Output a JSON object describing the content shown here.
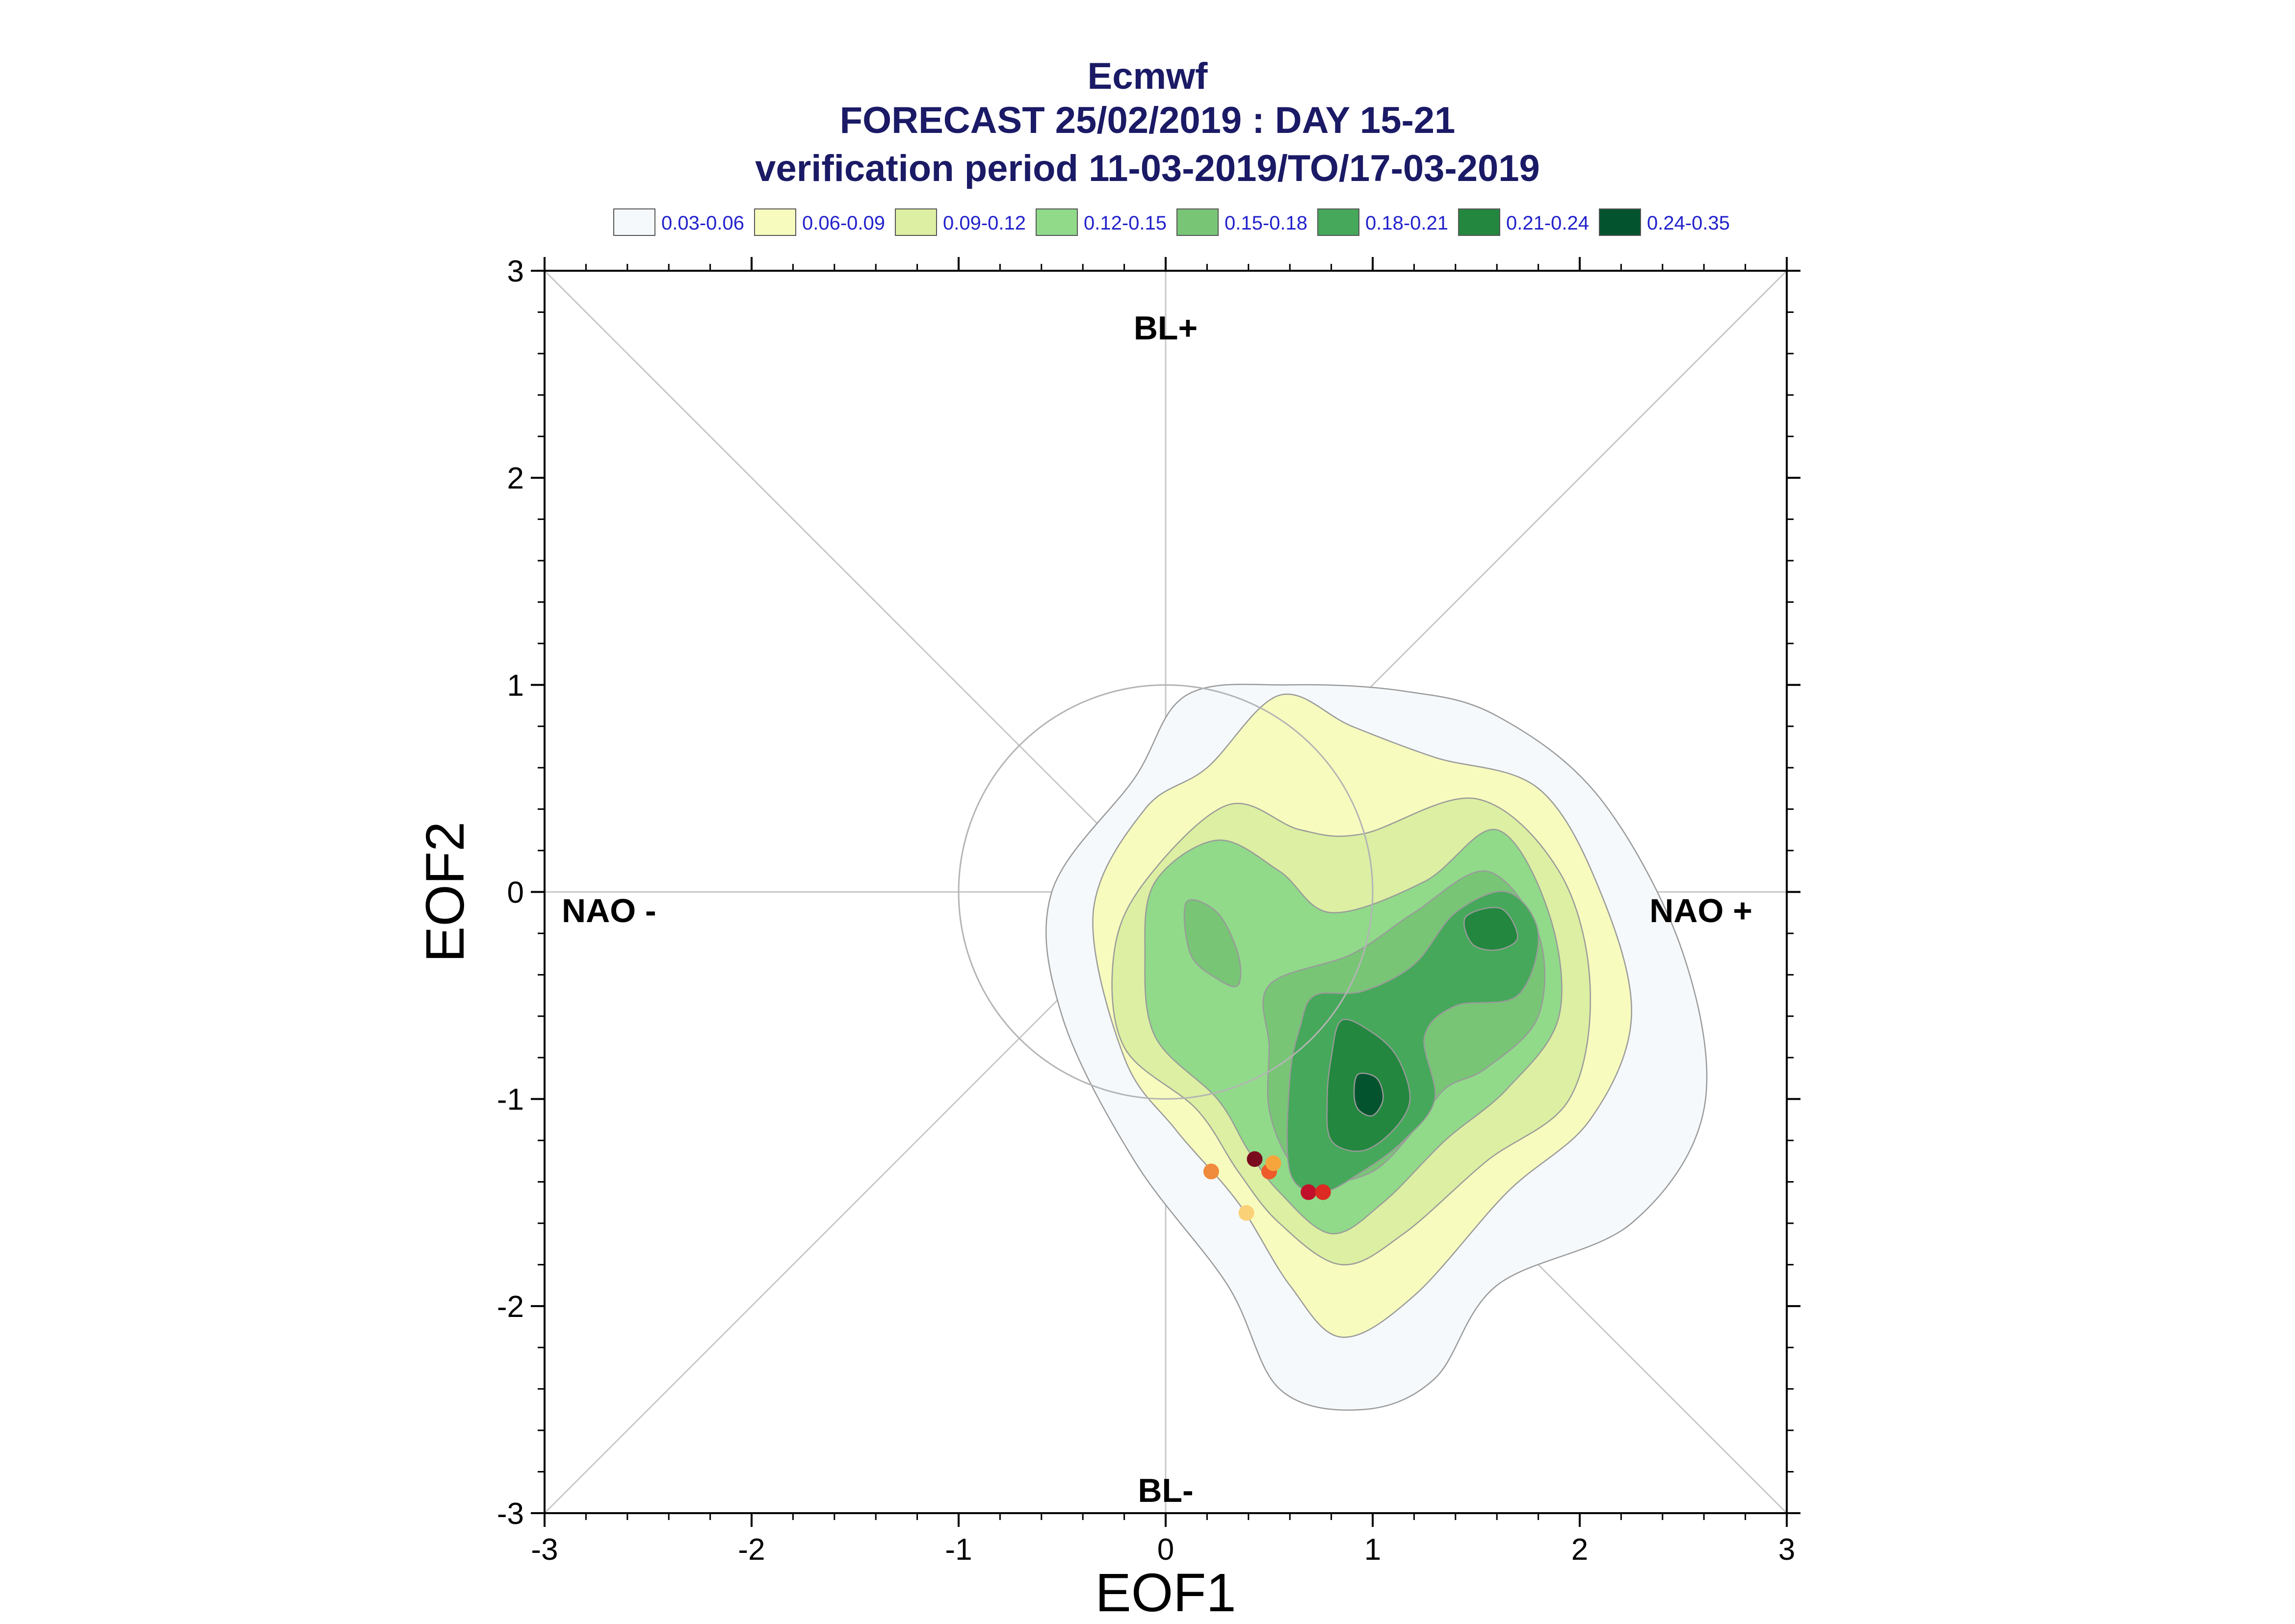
{
  "title": {
    "line1": "Ecmwf",
    "line2": "FORECAST 25/02/2019 : DAY 15-21",
    "line3": "verification period 11-03-2019/TO/17-03-2019"
  },
  "legend": [
    {
      "label": "0.03-0.06",
      "color": "#f5f9fc"
    },
    {
      "label": "0.06-0.09",
      "color": "#f7fbbe"
    },
    {
      "label": "0.09-0.12",
      "color": "#dcefa3"
    },
    {
      "label": "0.12-0.15",
      "color": "#90da8a"
    },
    {
      "label": "0.15-0.18",
      "color": "#78c576"
    },
    {
      "label": "0.18-0.21",
      "color": "#46a85a"
    },
    {
      "label": "0.21-0.24",
      "color": "#23873f"
    },
    {
      "label": "0.24-0.35",
      "color": "#04532f"
    }
  ],
  "regime_labels": {
    "top": "BL+",
    "bottom": "BL-",
    "left": "NAO -",
    "right": "NAO +"
  },
  "chart_data": {
    "type": "scatter",
    "xlabel": "EOF1",
    "ylabel": "EOF2",
    "xlim": [
      -3,
      3
    ],
    "ylim": [
      -3,
      3
    ],
    "x_ticks": [
      "-3",
      "-2",
      "-1",
      "0",
      "1",
      "2",
      "3"
    ],
    "y_ticks": [
      "-3",
      "-2",
      "-1",
      "0",
      "1",
      "2",
      "3"
    ],
    "unit_circle_radius": 1,
    "diagonals": true,
    "density_levels": [
      {
        "range": "0.03-0.06",
        "color": "#f5f9fc",
        "outline": [
          [
            -0.15,
            0.55
          ],
          [
            0.1,
            0.95
          ],
          [
            0.6,
            1.0
          ],
          [
            1.15,
            0.97
          ],
          [
            1.6,
            0.85
          ],
          [
            2.1,
            0.45
          ],
          [
            2.5,
            -0.3
          ],
          [
            2.6,
            -1.05
          ],
          [
            2.25,
            -1.6
          ],
          [
            1.6,
            -1.9
          ],
          [
            1.3,
            -2.35
          ],
          [
            0.95,
            -2.5
          ],
          [
            0.55,
            -2.4
          ],
          [
            0.3,
            -1.9
          ],
          [
            -0.15,
            -1.3
          ],
          [
            -0.5,
            -0.6
          ],
          [
            -0.55,
            0.0
          ]
        ]
      },
      {
        "range": "0.06-0.09",
        "color": "#f7fbbe",
        "outline": [
          [
            0.2,
            0.6
          ],
          [
            0.55,
            0.95
          ],
          [
            0.9,
            0.8
          ],
          [
            1.3,
            0.65
          ],
          [
            1.8,
            0.5
          ],
          [
            2.1,
            0.0
          ],
          [
            2.25,
            -0.6
          ],
          [
            2.05,
            -1.1
          ],
          [
            1.65,
            -1.45
          ],
          [
            1.2,
            -1.95
          ],
          [
            0.85,
            -2.15
          ],
          [
            0.6,
            -1.9
          ],
          [
            0.35,
            -1.5
          ],
          [
            0.05,
            -1.15
          ],
          [
            -0.2,
            -0.8
          ],
          [
            -0.35,
            -0.1
          ],
          [
            -0.1,
            0.4
          ]
        ]
      },
      {
        "range": "0.09-0.12",
        "color": "#dcefa3",
        "outline": [
          [
            -0.1,
            0.05
          ],
          [
            0.3,
            0.42
          ],
          [
            0.65,
            0.3
          ],
          [
            0.95,
            0.28
          ],
          [
            1.5,
            0.45
          ],
          [
            1.9,
            0.1
          ],
          [
            2.05,
            -0.45
          ],
          [
            1.95,
            -1.0
          ],
          [
            1.55,
            -1.3
          ],
          [
            1.15,
            -1.65
          ],
          [
            0.85,
            -1.8
          ],
          [
            0.55,
            -1.6
          ],
          [
            0.35,
            -1.35
          ],
          [
            0.15,
            -1.05
          ],
          [
            -0.2,
            -0.75
          ],
          [
            -0.25,
            -0.3
          ]
        ]
      },
      {
        "range": "0.12-0.15",
        "color": "#90da8a",
        "outline": [
          [
            -0.05,
            0.05
          ],
          [
            0.25,
            0.25
          ],
          [
            0.55,
            0.1
          ],
          [
            0.8,
            -0.1
          ],
          [
            1.25,
            0.05
          ],
          [
            1.6,
            0.3
          ],
          [
            1.85,
            -0.1
          ],
          [
            1.9,
            -0.6
          ],
          [
            1.65,
            -0.95
          ],
          [
            1.35,
            -1.2
          ],
          [
            1.05,
            -1.5
          ],
          [
            0.8,
            -1.65
          ],
          [
            0.55,
            -1.45
          ],
          [
            0.4,
            -1.25
          ],
          [
            0.25,
            -1.0
          ],
          [
            -0.05,
            -0.7
          ],
          [
            -0.1,
            -0.3
          ]
        ]
      },
      {
        "range": "0.15-0.18",
        "color": "#78c576",
        "outline": [
          [
            0.5,
            -0.45
          ],
          [
            0.9,
            -0.3
          ],
          [
            1.2,
            -0.1
          ],
          [
            1.55,
            0.1
          ],
          [
            1.8,
            -0.2
          ],
          [
            1.8,
            -0.6
          ],
          [
            1.55,
            -0.85
          ],
          [
            1.35,
            -0.95
          ],
          [
            1.2,
            -1.15
          ],
          [
            1.0,
            -1.35
          ],
          [
            0.75,
            -1.4
          ],
          [
            0.6,
            -1.3
          ],
          [
            0.5,
            -1.05
          ],
          [
            0.5,
            -0.75
          ]
        ]
      },
      {
        "range": "0.18-0.21",
        "color": "#46a85a",
        "outline": [
          [
            0.72,
            -0.5
          ],
          [
            0.95,
            -0.48
          ],
          [
            1.2,
            -0.35
          ],
          [
            1.4,
            -0.1
          ],
          [
            1.65,
            0.0
          ],
          [
            1.8,
            -0.2
          ],
          [
            1.7,
            -0.5
          ],
          [
            1.4,
            -0.55
          ],
          [
            1.25,
            -0.7
          ],
          [
            1.3,
            -1.0
          ],
          [
            1.15,
            -1.2
          ],
          [
            0.95,
            -1.35
          ],
          [
            0.75,
            -1.45
          ],
          [
            0.6,
            -1.35
          ],
          [
            0.6,
            -0.9
          ],
          [
            0.65,
            -0.65
          ]
        ]
      },
      {
        "range": "0.21-0.24",
        "color": "#23873f",
        "outline": [
          [
            0.85,
            -0.62
          ],
          [
            1.0,
            -0.68
          ],
          [
            1.12,
            -0.8
          ],
          [
            1.18,
            -1.0
          ],
          [
            1.1,
            -1.15
          ],
          [
            0.95,
            -1.25
          ],
          [
            0.8,
            -1.2
          ],
          [
            0.78,
            -1.0
          ],
          [
            0.8,
            -0.8
          ]
        ]
      },
      {
        "range": "0.24-0.35",
        "color": "#04532f",
        "outline": [
          [
            0.93,
            -0.88
          ],
          [
            1.02,
            -0.9
          ],
          [
            1.05,
            -1.0
          ],
          [
            1.0,
            -1.08
          ],
          [
            0.93,
            -1.05
          ],
          [
            0.91,
            -0.97
          ]
        ]
      }
    ],
    "secondary_peaks": [
      {
        "range": "0.15-0.18",
        "color": "#78c576",
        "outline": [
          [
            0.1,
            -0.05
          ],
          [
            0.25,
            -0.1
          ],
          [
            0.35,
            -0.3
          ],
          [
            0.35,
            -0.45
          ],
          [
            0.25,
            -0.42
          ],
          [
            0.12,
            -0.3
          ]
        ]
      },
      {
        "range": "0.21-0.24",
        "color": "#23873f",
        "outline": [
          [
            1.45,
            -0.12
          ],
          [
            1.62,
            -0.08
          ],
          [
            1.7,
            -0.22
          ],
          [
            1.6,
            -0.28
          ],
          [
            1.48,
            -0.25
          ]
        ]
      }
    ],
    "points": [
      {
        "x": 0.22,
        "y": -1.35,
        "color": "#f08a3c"
      },
      {
        "x": 0.39,
        "y": -1.55,
        "color": "#fbd178"
      },
      {
        "x": 0.43,
        "y": -1.29,
        "color": "#7a0a1e"
      },
      {
        "x": 0.5,
        "y": -1.35,
        "color": "#ee5a2a"
      },
      {
        "x": 0.52,
        "y": -1.31,
        "color": "#f6a53c"
      },
      {
        "x": 0.69,
        "y": -1.45,
        "color": "#c0102a"
      },
      {
        "x": 0.76,
        "y": -1.45,
        "color": "#dd2a22"
      }
    ]
  }
}
